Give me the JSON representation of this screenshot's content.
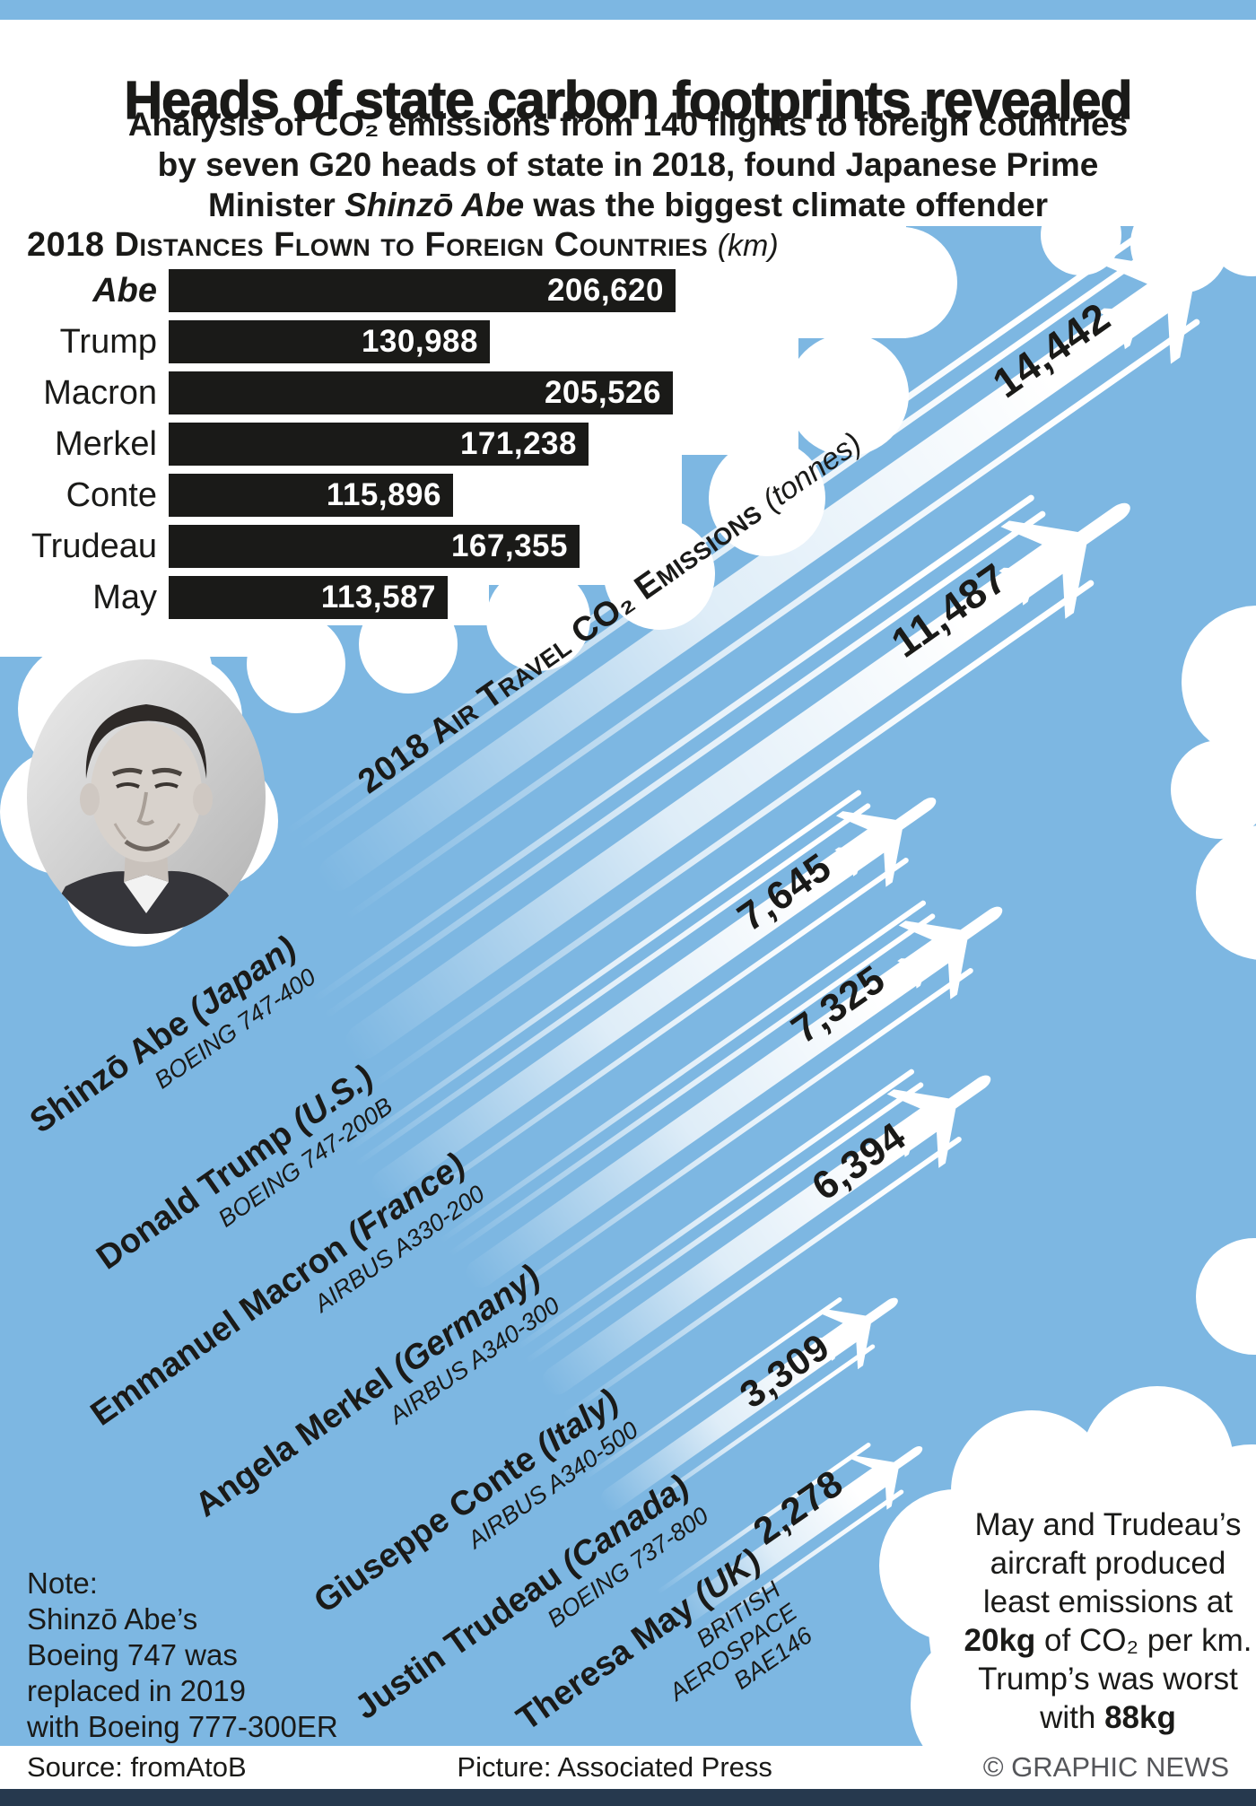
{
  "title": "Heads of state carbon footprints revealed",
  "subtitle": {
    "line1": "Analysis of CO₂ emissions from 140 flights to foreign countries",
    "line2": "by seven G20 heads of state in 2018, found Japanese Prime",
    "line3_pre": "Minister ",
    "line3_name": "Shinzō Abe",
    "line3_post": " was the biggest climate offender"
  },
  "distances": {
    "header": "2018 Distances Flown to Foreign Countries",
    "unit": "(km)"
  },
  "emissions": {
    "header": "2018 Air Travel CO₂ Emissions",
    "unit": "(tonnes)"
  },
  "chart_data": [
    {
      "type": "bar",
      "title": "2018 Distances flown to foreign countries (km)",
      "orientation": "horizontal",
      "categories": [
        "Abe",
        "Trump",
        "Macron",
        "Merkel",
        "Conte",
        "Trudeau",
        "May"
      ],
      "values": [
        206620,
        130988,
        205526,
        171238,
        115896,
        167355,
        113587
      ],
      "value_labels": [
        "206,620",
        "130,988",
        "205,526",
        "171,238",
        "115,896",
        "167,355",
        "113,587"
      ],
      "xlim": [
        0,
        206620
      ],
      "bar_color": "#1a1a18",
      "grid": false
    },
    {
      "type": "pictorial-bar",
      "title": "2018 Air travel CO₂ emissions (tonnes)",
      "categories": [
        "Abe",
        "Trump",
        "Macron",
        "Merkel",
        "Conte",
        "Trudeau",
        "May"
      ],
      "values": [
        14442,
        11487,
        7645,
        7325,
        6394,
        3309,
        2278
      ],
      "value_labels": [
        "14,442",
        "11,487",
        "7,645",
        "7,325",
        "6,394",
        "3,309",
        "2,278"
      ]
    }
  ],
  "leaders": [
    {
      "name": "Shinzō Abe",
      "country_label": "(Japan)",
      "aircraft": "BOEING 747-400",
      "emissions_label": "14,442"
    },
    {
      "name": "Donald Trump",
      "country_label": "(U.S.)",
      "aircraft": "BOEING 747-200B",
      "emissions_label": "11,487"
    },
    {
      "name": "Emmanuel Macron",
      "country_label": "(France)",
      "aircraft": "AIRBUS A330-200",
      "emissions_label": "7,645"
    },
    {
      "name": "Angela Merkel",
      "country_label": "(Germany)",
      "aircraft": "AIRBUS A340-300",
      "emissions_label": "7,325"
    },
    {
      "name": "Giuseppe Conte",
      "country_label": "(Italy)",
      "aircraft": "AIRBUS A340-500",
      "emissions_label": "6,394"
    },
    {
      "name": "Justin Trudeau",
      "country_label": "(Canada)",
      "aircraft": "BOEING 737-800",
      "emissions_label": "3,309"
    },
    {
      "name": "Theresa May",
      "country_label": "(UK)",
      "aircraft": "BRITISH AEROSPACE BAE146",
      "emissions_label": "2,278"
    }
  ],
  "note": [
    "Note:",
    "Shinzō Abe’s",
    "Boeing 747 was",
    "replaced in 2019",
    "with Boeing 777-300ER"
  ],
  "callout": {
    "part1": "May and Trudeau’s aircraft produced least emissions at ",
    "bold1": "20kg",
    "part2": " of CO₂ per km. Trump’s was worst with ",
    "bold2": "88kg"
  },
  "footer": {
    "source": "Source: fromAtoB",
    "picture": "Picture: Associated Press",
    "credit": "© GRAPHIC NEWS"
  },
  "colors": {
    "sky": "#7db7e2",
    "bar": "#1a1a18",
    "bottom_bar": "#26394e"
  }
}
